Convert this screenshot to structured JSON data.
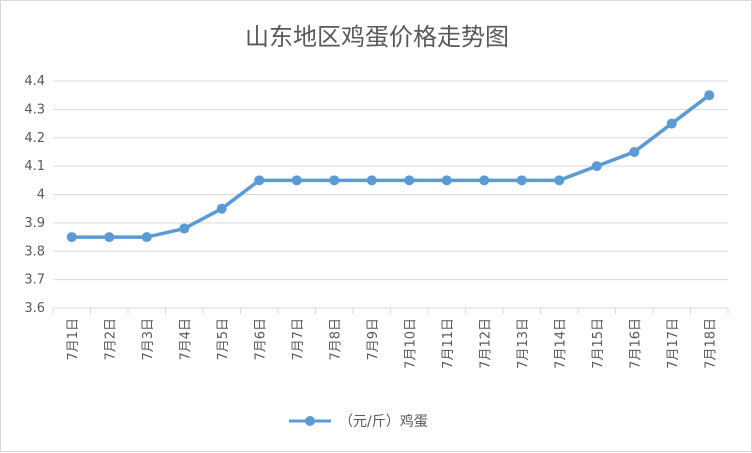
{
  "chart_data": {
    "type": "line",
    "title": "山东地区鸡蛋价格走势图",
    "xlabel": "",
    "ylabel": "",
    "categories": [
      "7月1日",
      "7月2日",
      "7月3日",
      "7月4日",
      "7月5日",
      "7月6日",
      "7月7日",
      "7月8日",
      "7月9日",
      "7月10日",
      "7月11日",
      "7月12日",
      "7月13日",
      "7月14日",
      "7月15日",
      "7月16日",
      "7月17日",
      "7月18日"
    ],
    "series": [
      {
        "name": "（元/斤）鸡蛋",
        "color": "#5b9bd5",
        "values": [
          3.85,
          3.85,
          3.85,
          3.88,
          3.95,
          4.05,
          4.05,
          4.05,
          4.05,
          4.05,
          4.05,
          4.05,
          4.05,
          4.05,
          4.1,
          4.15,
          4.25,
          4.35
        ]
      }
    ],
    "ylim": [
      3.6,
      4.4
    ],
    "yticks": [
      "3.6",
      "3.7",
      "3.8",
      "3.9",
      "4",
      "4.1",
      "4.2",
      "4.3",
      "4.4"
    ],
    "grid": true,
    "legend_position": "bottom"
  }
}
